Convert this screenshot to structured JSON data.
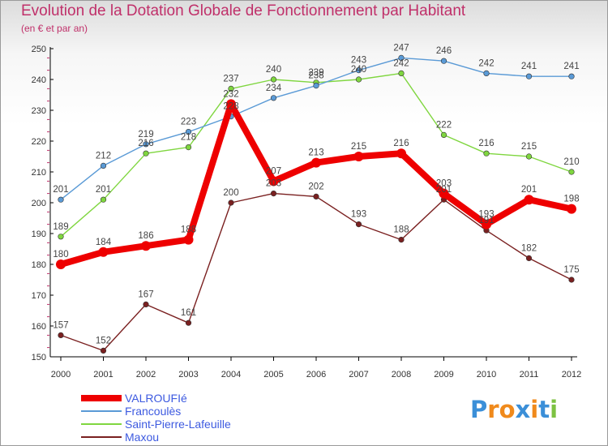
{
  "chart_data": {
    "type": "line",
    "title": "Evolution de la Dotation Globale de Fonctionnement par Habitant",
    "subtitle": "(en € et par an)",
    "xlabel": "",
    "ylabel": "",
    "ylim": [
      150,
      250
    ],
    "yticks": [
      150,
      160,
      170,
      180,
      190,
      200,
      210,
      220,
      230,
      240,
      250
    ],
    "categories": [
      "2000",
      "2001",
      "2002",
      "2003",
      "2004",
      "2005",
      "2006",
      "2007",
      "2008",
      "2009",
      "2010",
      "2011",
      "2012"
    ],
    "grid": false,
    "legend_position": "bottom-left",
    "series": [
      {
        "name": "VALROUFIé",
        "color": "#ee0000",
        "values": [
          180,
          184,
          186,
          188,
          232,
          207,
          213,
          215,
          216,
          203,
          193,
          201,
          198
        ]
      },
      {
        "name": "Francoulès",
        "color": "#5a9ad6",
        "values": [
          201,
          212,
          219,
          223,
          228,
          234,
          238,
          243,
          247,
          246,
          242,
          241,
          241
        ]
      },
      {
        "name": "Saint-Pierre-Lafeuille",
        "color": "#7fd63f",
        "values": [
          189,
          201,
          216,
          218,
          237,
          240,
          239,
          240,
          242,
          222,
          216,
          215,
          210
        ]
      },
      {
        "name": "Maxou",
        "color": "#7a2020",
        "values": [
          157,
          152,
          167,
          161,
          200,
          203,
          202,
          193,
          188,
          201,
          191,
          182,
          175
        ]
      }
    ]
  },
  "logo": {
    "text": "Proxiti",
    "letters": [
      "P",
      "r",
      "o",
      "x",
      "i",
      "t",
      "i"
    ],
    "colors": [
      "#3b8fd8",
      "#f08a1c",
      "#f08a1c",
      "#3b8fd8",
      "#f08a1c",
      "#3b8fd8",
      "#7dc242"
    ]
  }
}
